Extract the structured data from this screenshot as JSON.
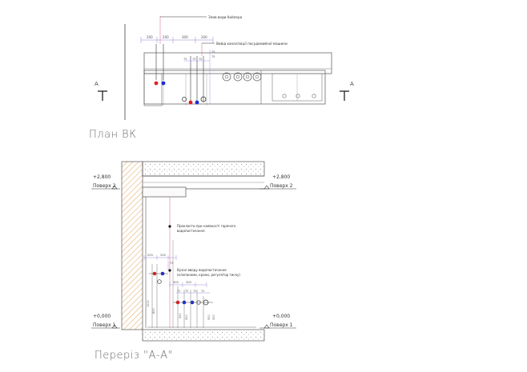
{
  "plan": {
    "title": "План ВК",
    "section_mark": "А",
    "callouts": {
      "boiler_drain": "Злив води бойлера",
      "dishwasher_drain": "Вивід каналізації посудомийної машини"
    },
    "dims_top": [
      "200",
      "200",
      "300",
      "200"
    ],
    "dims_small": [
      "75",
      "75",
      "75",
      "75",
      "75"
    ]
  },
  "section": {
    "title": "Переріз \"А-А\"",
    "levels": [
      {
        "value": "+2,800",
        "name": "Поверх 2"
      },
      {
        "value": "+0,000",
        "name": "Поверх 1"
      }
    ],
    "callouts": {
      "hot_water_pipes": [
        "Прокласти при наявності гарячого",
        "водопостачання"
      ],
      "supply_nodes": [
        "Вузол вводу водопостачання",
        "(клапанами, крани, регулятор тиску)"
      ]
    },
    "dims_upper": [
      "200",
      "200",
      "75"
    ],
    "dims_lower": [
      "300",
      "200",
      "75",
      "75",
      "75",
      "75"
    ],
    "dims_vertical": [
      "1000",
      "800",
      "500",
      "300",
      "500",
      "300"
    ]
  },
  "colors": {
    "line": "#333333",
    "dim": "#9a7fd6",
    "hot": "#e02020",
    "cold": "#1a2ad6",
    "wall_hatch": "#e3b070",
    "leader_pink": "#e07aa0"
  }
}
